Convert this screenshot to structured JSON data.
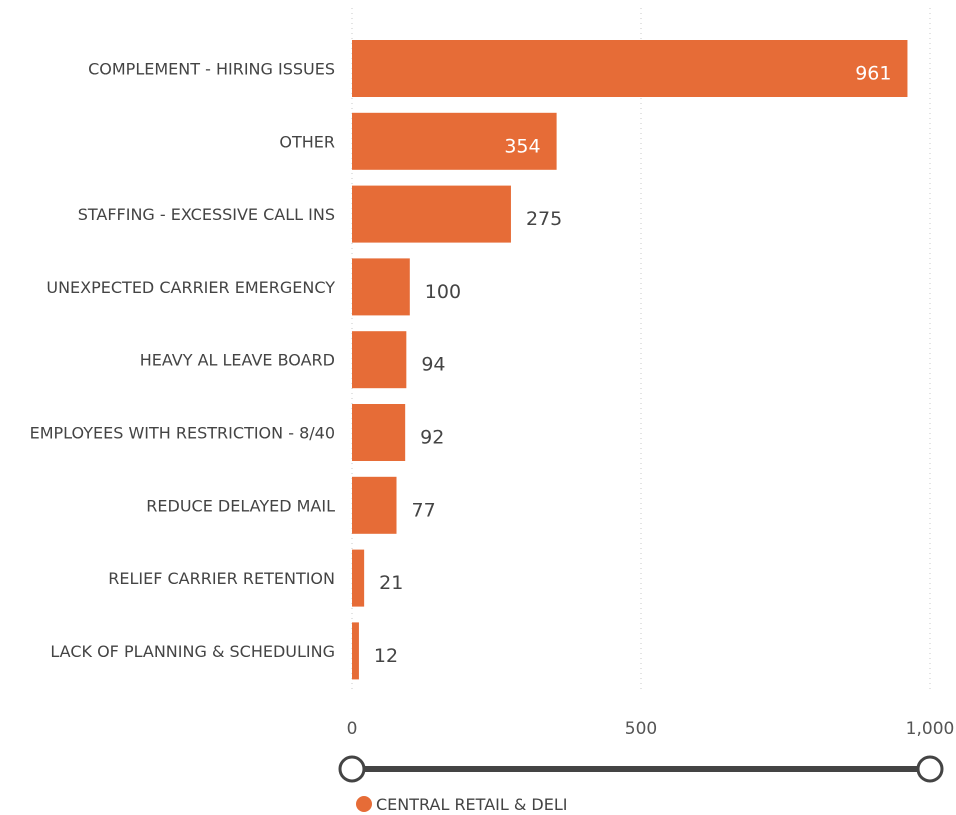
{
  "chart_data": {
    "type": "bar",
    "orientation": "horizontal",
    "categories": [
      "COMPLEMENT - HIRING ISSUES",
      "OTHER",
      "STAFFING - EXCESSIVE CALL INS",
      "UNEXPECTED CARRIER EMERGENCY",
      "HEAVY AL LEAVE BOARD",
      "EMPLOYEES WITH RESTRICTION - 8/40",
      "REDUCE DELAYED MAIL",
      "RELIEF CARRIER RETENTION",
      "LACK OF PLANNING & SCHEDULING"
    ],
    "series": [
      {
        "name": "CENTRAL RETAIL & DELI",
        "values": [
          961,
          354,
          275,
          100,
          94,
          92,
          77,
          21,
          12
        ],
        "color": "#E66C37"
      }
    ],
    "xlim": [
      0,
      1000
    ],
    "xticks": [
      0,
      500,
      1000
    ],
    "xtick_labels": [
      "0",
      "500",
      "1,000"
    ],
    "grid": true,
    "legend_position": "bottom-left",
    "range_slider": {
      "min": 0,
      "max": 1000
    }
  }
}
